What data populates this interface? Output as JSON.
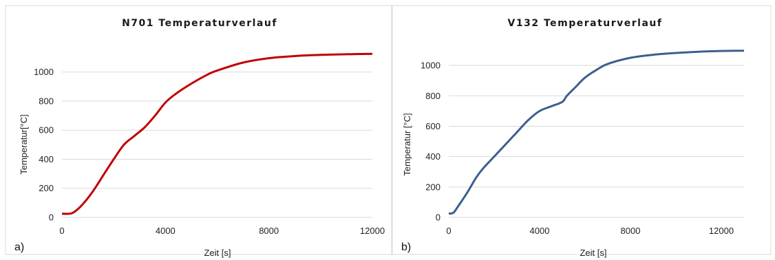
{
  "chart_data": [
    {
      "type": "line",
      "panel_label": "a)",
      "title": "N701 Temperaturverlauf",
      "xlabel": "Zeit [s]",
      "ylabel": "Temperatur[°C]",
      "xlim": [
        0,
        12000
      ],
      "ylim": [
        0,
        1150
      ],
      "xticks": [
        0,
        4000,
        8000,
        12000
      ],
      "yticks": [
        0,
        200,
        400,
        600,
        800,
        1000
      ],
      "grid": true,
      "color": "#c00000",
      "series": [
        {
          "x": [
            0,
            300,
            500,
            800,
            1200,
            1600,
            2000,
            2400,
            2800,
            3200,
            3600,
            4000,
            4400,
            5000,
            5600,
            6000,
            7000,
            8000,
            9000,
            10000,
            11000,
            12000
          ],
          "y": [
            25,
            25,
            40,
            90,
            180,
            290,
            400,
            500,
            560,
            620,
            700,
            790,
            850,
            920,
            980,
            1010,
            1065,
            1095,
            1110,
            1118,
            1122,
            1125
          ]
        }
      ]
    },
    {
      "type": "line",
      "panel_label": "b)",
      "title": "V132 Temperaturverlauf",
      "xlabel": "Zeit [s]",
      "ylabel": "Temperatur [°C]",
      "xlim": [
        0,
        13000
      ],
      "ylim": [
        0,
        1100
      ],
      "xticks": [
        0,
        4000,
        8000,
        12000
      ],
      "yticks": [
        0,
        200,
        400,
        600,
        800,
        1000
      ],
      "grid": true,
      "color": "#3a5f8f",
      "series": [
        {
          "x": [
            0,
            200,
            400,
            800,
            1200,
            1500,
            2000,
            2500,
            3000,
            3500,
            4000,
            4500,
            5000,
            5200,
            5600,
            6000,
            6500,
            7000,
            8000,
            9000,
            10000,
            11000,
            12000,
            13000
          ],
          "y": [
            25,
            30,
            70,
            160,
            260,
            320,
            400,
            480,
            560,
            640,
            700,
            730,
            760,
            800,
            860,
            920,
            970,
            1010,
            1050,
            1070,
            1082,
            1090,
            1095,
            1097
          ]
        }
      ]
    }
  ]
}
